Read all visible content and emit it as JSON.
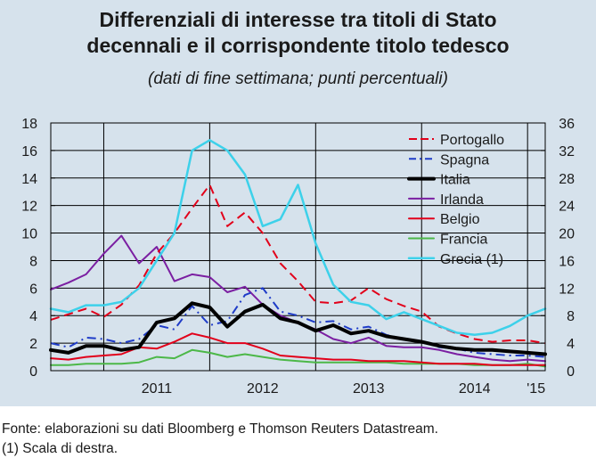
{
  "header": {
    "title_line1": "Differenziali di interesse tra titoli di Stato",
    "title_line2": "decennali e il corrispondente titolo tedesco",
    "subtitle": "(dati di fine settimana; punti percentuali)"
  },
  "footer": {
    "source": "Fonte: elaborazioni su dati Bloomberg e Thomson Reuters Datastream.",
    "note": "(1) Scala di destra."
  },
  "colors": {
    "background": "#d6e2ec",
    "Portogallo": "#e2001a",
    "Spagna": "#1f3cc8",
    "Italia": "#000000",
    "Irlanda": "#7b1fa2",
    "Belgio": "#e2001a",
    "Francia": "#4cb848",
    "Grecia": "#3dd1ea"
  },
  "chart_data": {
    "type": "line",
    "title": "Differenziali di interesse tra titoli di Stato decennali e il corrispondente titolo tedesco",
    "subtitle": "(dati di fine settimana; punti percentuali)",
    "x_tick_labels": [
      "2011",
      "2012",
      "2013",
      "2014",
      "'15"
    ],
    "x_range": [
      "2010-07",
      "2015-03"
    ],
    "ylim_left": [
      0,
      18
    ],
    "yticks_left": [
      0,
      2,
      4,
      6,
      8,
      10,
      12,
      14,
      16,
      18
    ],
    "ylim_right": [
      0,
      36
    ],
    "yticks_right": [
      0,
      4,
      8,
      12,
      16,
      20,
      24,
      28,
      32,
      36
    ],
    "grid": "horizontal",
    "legend_position": "top-right",
    "x": [
      "2010-07",
      "2010-09",
      "2010-11",
      "2011-01",
      "2011-03",
      "2011-05",
      "2011-07",
      "2011-09",
      "2011-11",
      "2012-01",
      "2012-03",
      "2012-05",
      "2012-07",
      "2012-09",
      "2012-11",
      "2013-01",
      "2013-03",
      "2013-05",
      "2013-07",
      "2013-09",
      "2013-11",
      "2014-01",
      "2014-03",
      "2014-05",
      "2014-07",
      "2014-09",
      "2014-11",
      "2015-01",
      "2015-03"
    ],
    "series": [
      {
        "name": "Portogallo",
        "style": "dashed",
        "axis": "left",
        "values": [
          3.7,
          4.1,
          4.5,
          3.9,
          4.8,
          6.2,
          8.5,
          10.0,
          11.8,
          13.5,
          10.5,
          11.5,
          10.0,
          7.8,
          6.5,
          5.0,
          4.9,
          5.1,
          6.0,
          5.2,
          4.7,
          4.3,
          3.2,
          2.7,
          2.3,
          2.1,
          2.2,
          2.2,
          2.0
        ]
      },
      {
        "name": "Spagna",
        "style": "dashdot",
        "axis": "left",
        "values": [
          2.0,
          1.7,
          2.4,
          2.3,
          2.0,
          2.3,
          3.3,
          3.0,
          4.7,
          3.3,
          3.6,
          5.5,
          6.0,
          4.3,
          4.0,
          3.5,
          3.6,
          3.0,
          3.2,
          2.6,
          2.3,
          2.1,
          1.7,
          1.6,
          1.3,
          1.2,
          1.1,
          1.1,
          1.0
        ]
      },
      {
        "name": "Italia",
        "style": "solid-thick",
        "axis": "left",
        "values": [
          1.5,
          1.3,
          1.8,
          1.8,
          1.5,
          1.7,
          3.5,
          3.8,
          4.9,
          4.6,
          3.2,
          4.3,
          4.8,
          3.8,
          3.5,
          2.9,
          3.3,
          2.7,
          2.9,
          2.5,
          2.3,
          2.1,
          1.8,
          1.6,
          1.5,
          1.5,
          1.4,
          1.3,
          1.2
        ]
      },
      {
        "name": "Irlanda",
        "style": "solid",
        "axis": "left",
        "values": [
          5.9,
          6.4,
          7.0,
          8.5,
          9.8,
          7.8,
          9.0,
          6.5,
          7.0,
          6.8,
          5.7,
          6.1,
          4.8,
          4.0,
          3.5,
          3.0,
          2.3,
          2.0,
          2.4,
          1.8,
          1.7,
          1.7,
          1.5,
          1.2,
          1.0,
          0.8,
          0.7,
          0.8,
          0.7
        ]
      },
      {
        "name": "Belgio",
        "style": "solid",
        "axis": "left",
        "values": [
          0.9,
          0.8,
          1.0,
          1.1,
          1.2,
          1.7,
          1.6,
          2.1,
          2.7,
          2.4,
          2.0,
          2.0,
          1.6,
          1.1,
          1.0,
          0.9,
          0.8,
          0.8,
          0.7,
          0.7,
          0.7,
          0.6,
          0.5,
          0.5,
          0.5,
          0.4,
          0.4,
          0.4,
          0.4
        ]
      },
      {
        "name": "Francia",
        "style": "solid",
        "axis": "left",
        "values": [
          0.4,
          0.4,
          0.5,
          0.5,
          0.5,
          0.6,
          1.0,
          0.9,
          1.5,
          1.3,
          1.0,
          1.2,
          1.0,
          0.8,
          0.7,
          0.6,
          0.6,
          0.6,
          0.6,
          0.6,
          0.5,
          0.5,
          0.5,
          0.5,
          0.4,
          0.4,
          0.4,
          0.5,
          0.3
        ]
      },
      {
        "name": "Grecia (1)",
        "style": "solid",
        "axis": "right",
        "values": [
          9.0,
          8.5,
          9.5,
          9.5,
          10.0,
          12.0,
          16.0,
          20.0,
          32.0,
          33.5,
          32.0,
          28.5,
          21.0,
          22.0,
          27.0,
          18.5,
          12.5,
          10.0,
          9.5,
          7.5,
          8.5,
          7.5,
          6.5,
          5.5,
          5.2,
          5.5,
          6.5,
          8.0,
          9.0
        ]
      }
    ]
  }
}
